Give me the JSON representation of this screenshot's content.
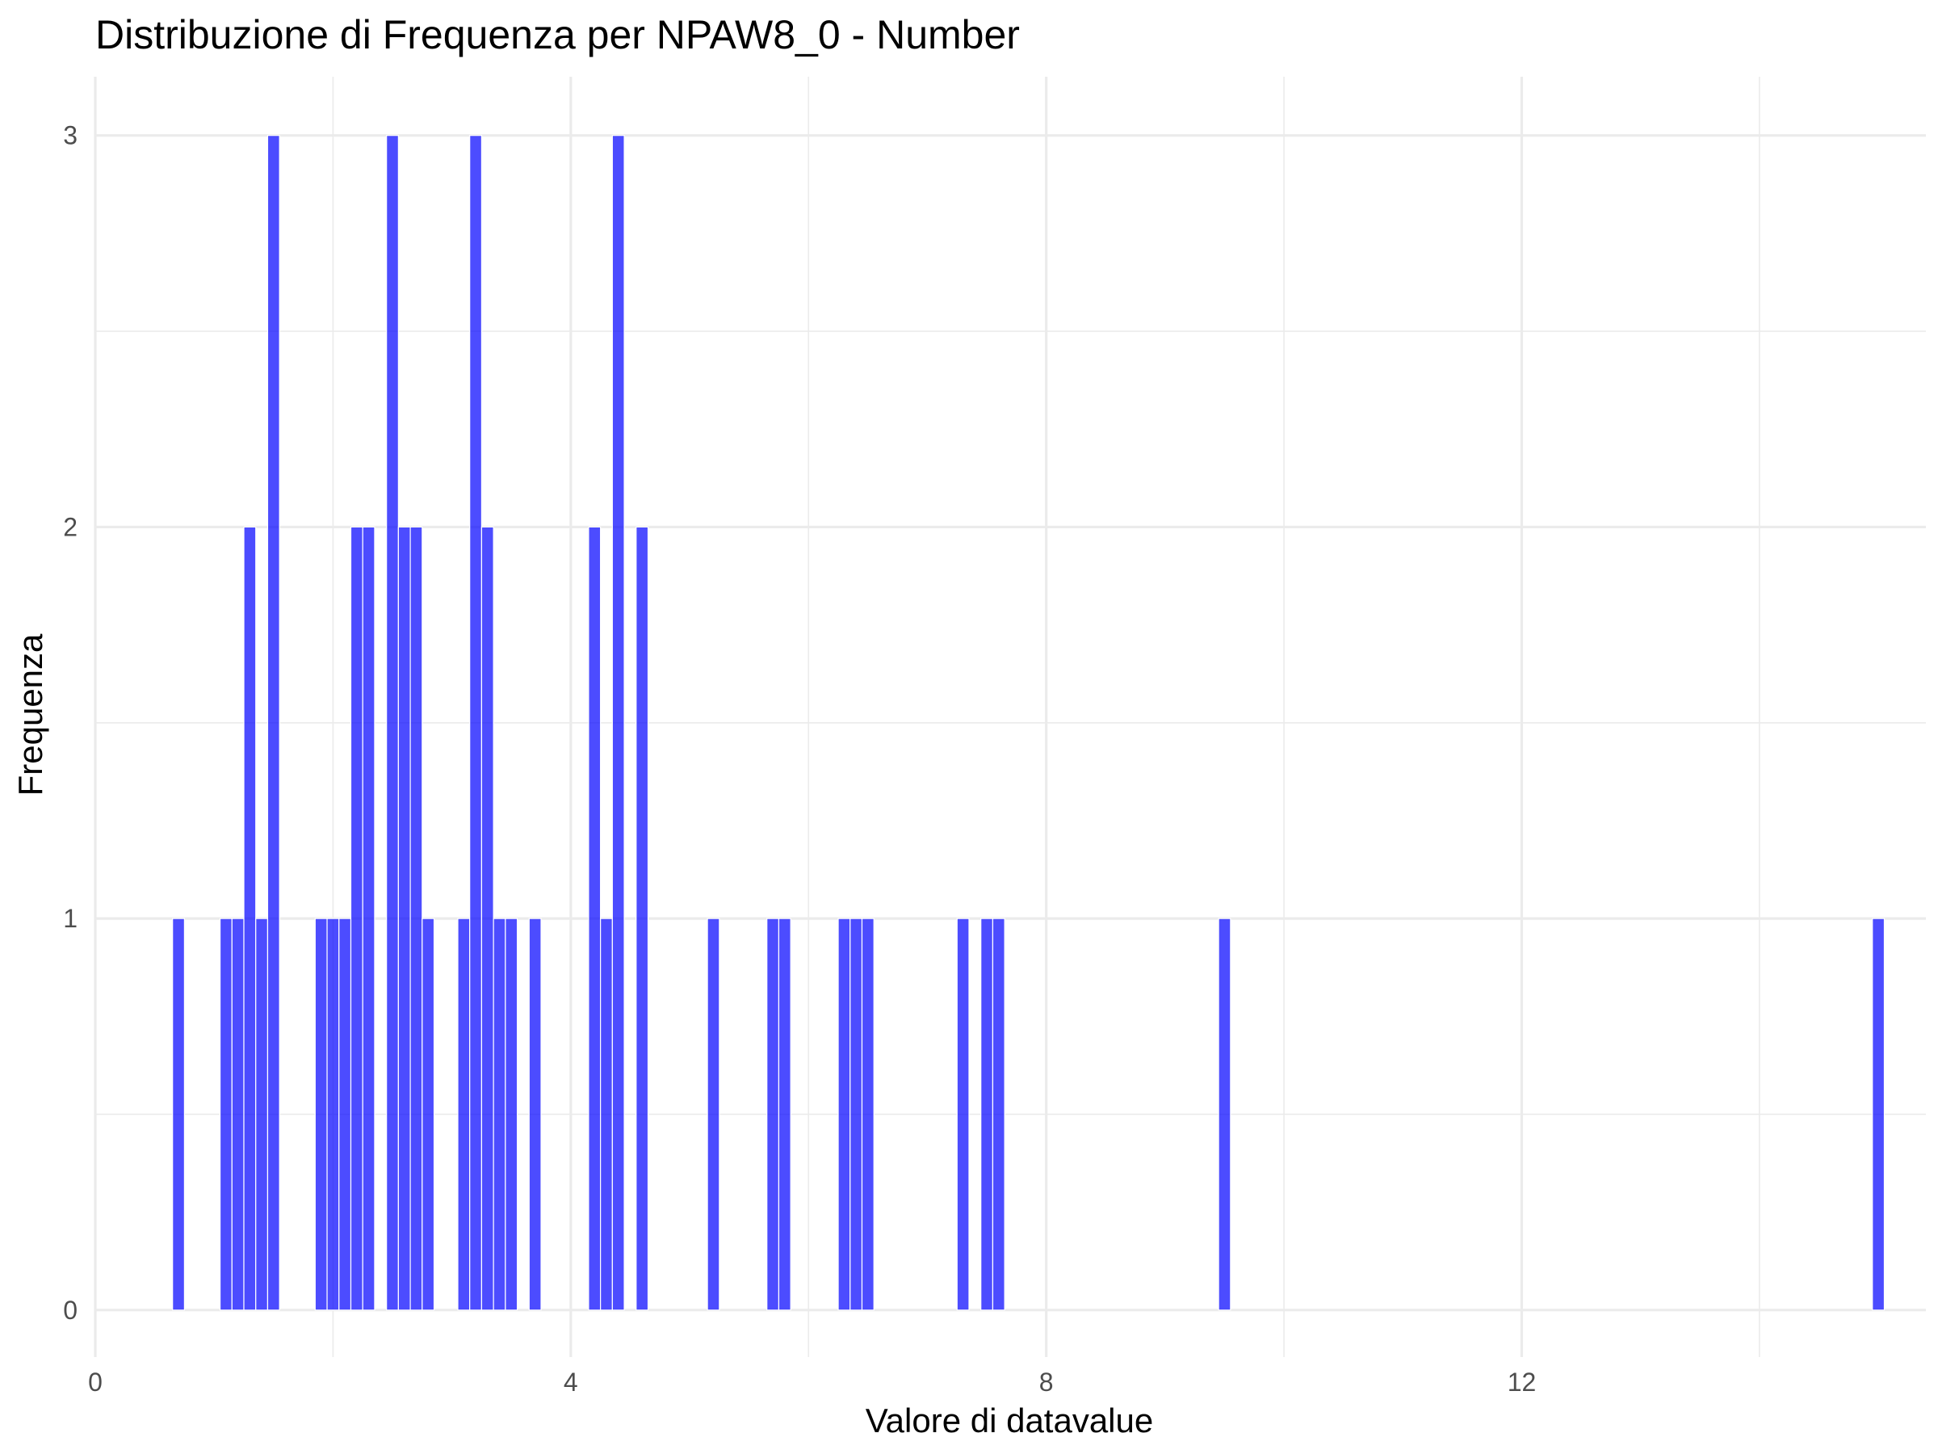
{
  "chart_data": {
    "type": "bar",
    "title": "Distribuzione di Frequenza per NPAW8_0 - Number",
    "xlabel": "Valore di datavalue",
    "ylabel": "Frequenza",
    "xlim": [
      0,
      15.4
    ],
    "ylim": [
      -0.12,
      3.15
    ],
    "xticks": [
      0,
      4,
      8,
      12
    ],
    "xtick_labels": [
      "0",
      "4",
      "8",
      "12"
    ],
    "yticks": [
      0,
      1,
      2,
      3
    ],
    "ytick_labels": [
      "0",
      "1",
      "2",
      "3"
    ],
    "grid": true,
    "bar_color": "#0000ff",
    "bar_opacity": 0.7,
    "bin_width": 0.1,
    "x": [
      0.7,
      1.1,
      1.2,
      1.3,
      1.4,
      1.5,
      1.9,
      2.0,
      2.1,
      2.2,
      2.3,
      2.5,
      2.6,
      2.7,
      2.8,
      3.1,
      3.2,
      3.3,
      3.4,
      3.5,
      3.7,
      4.2,
      4.3,
      4.4,
      4.6,
      5.2,
      5.7,
      5.8,
      6.3,
      6.4,
      6.5,
      7.3,
      7.5,
      7.6,
      9.5,
      15.0
    ],
    "values": [
      1,
      1,
      1,
      2,
      1,
      3,
      1,
      1,
      1,
      2,
      2,
      3,
      2,
      2,
      1,
      1,
      3,
      2,
      1,
      1,
      1,
      2,
      1,
      3,
      2,
      1,
      1,
      1,
      1,
      1,
      1,
      1,
      1,
      1,
      1,
      1
    ]
  }
}
